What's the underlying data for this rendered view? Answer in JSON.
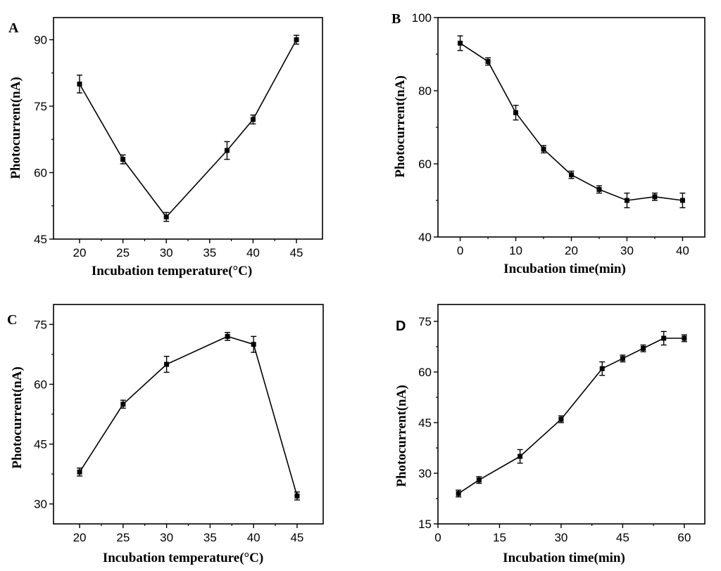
{
  "figure": {
    "background": "#ffffff",
    "line_color": "#000000"
  },
  "chart_data": [
    {
      "panel": "A",
      "type": "line",
      "xlabel": "Incubation temperature(°C)",
      "ylabel": "Photocurrent(nA)",
      "xlim": [
        17,
        48
      ],
      "ylim": [
        45,
        95
      ],
      "xticks": [
        20,
        25,
        30,
        35,
        40,
        45
      ],
      "yticks": [
        45,
        60,
        75,
        90
      ],
      "series": [
        {
          "name": "A",
          "x": [
            20,
            25,
            30,
            37,
            40,
            45
          ],
          "y": [
            80,
            63,
            50,
            65,
            72,
            90
          ],
          "err": [
            2,
            1,
            1,
            2,
            1,
            1
          ]
        }
      ]
    },
    {
      "panel": "B",
      "type": "line",
      "xlabel": "Incubation time(min)",
      "ylabel": "Photocurrent(nA)",
      "xlim": [
        -4,
        44
      ],
      "ylim": [
        40,
        100
      ],
      "xticks": [
        0,
        10,
        20,
        30,
        40
      ],
      "yticks": [
        40,
        60,
        80,
        100
      ],
      "series": [
        {
          "name": "B",
          "x": [
            0,
            5,
            10,
            15,
            20,
            25,
            30,
            35,
            40
          ],
          "y": [
            93,
            88,
            74,
            64,
            57,
            53,
            50,
            51,
            50
          ],
          "err": [
            2,
            1,
            2,
            1,
            1,
            1,
            2,
            1,
            2
          ]
        }
      ]
    },
    {
      "panel": "C",
      "type": "line",
      "xlabel": "Incubation temperature(°C)",
      "ylabel": "Photocurrent(nA)",
      "xlim": [
        17,
        48
      ],
      "ylim": [
        25,
        80
      ],
      "xticks": [
        20,
        25,
        30,
        35,
        40,
        45
      ],
      "yticks": [
        30,
        45,
        60,
        75
      ],
      "series": [
        {
          "name": "C",
          "x": [
            20,
            25,
            30,
            37,
            40,
            45
          ],
          "y": [
            38,
            55,
            65,
            72,
            70,
            32
          ],
          "err": [
            1,
            1,
            2,
            1,
            2,
            1
          ]
        }
      ]
    },
    {
      "panel": "D",
      "type": "line",
      "xlabel": "Incubation time(min)",
      "ylabel": "Photocurrent(nA)",
      "xlim": [
        0,
        65
      ],
      "ylim": [
        15,
        80
      ],
      "xticks": [
        0,
        15,
        30,
        45,
        60
      ],
      "yticks": [
        15,
        30,
        45,
        60,
        75
      ],
      "series": [
        {
          "name": "D",
          "x": [
            5,
            10,
            20,
            30,
            40,
            45,
            50,
            55,
            60
          ],
          "y": [
            24,
            28,
            35,
            46,
            61,
            64,
            67,
            70,
            70
          ],
          "err": [
            1,
            1,
            2,
            1,
            2,
            1,
            1,
            2,
            1
          ]
        }
      ]
    }
  ]
}
